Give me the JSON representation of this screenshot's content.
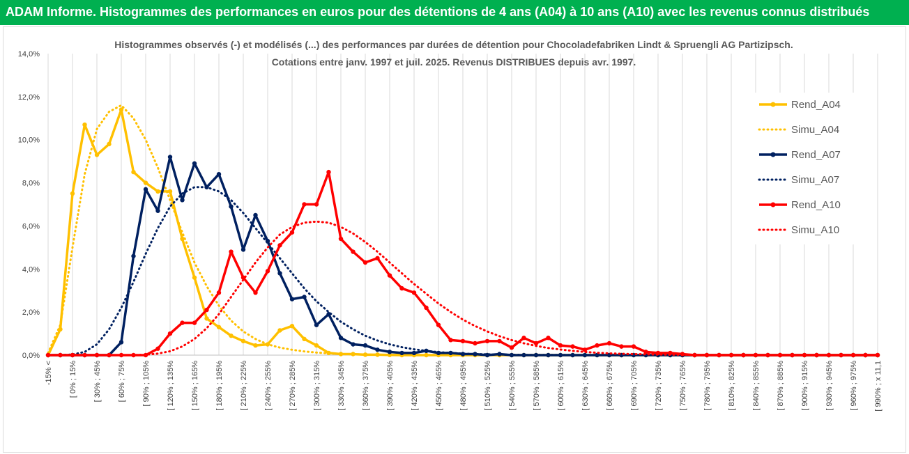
{
  "banner": {
    "title": "ADAM Informe. Histogrammes des performances en euros pour des détentions de 4 ans (A04) à 10 ans (A10) avec les revenus connus distribués"
  },
  "colors": {
    "banner_bg": "#00b050",
    "banner_text": "#ffffff",
    "A04": "#ffc000",
    "A07": "#002060",
    "A10": "#ff0000",
    "grid": "#d9d9d9"
  },
  "chart_data": {
    "type": "line",
    "title": "Histogrammes observés (-) et modélisés (...) des performances par durées de détention pour Chocoladefabriken Lindt & Spruengli AG Partizipsch.",
    "subtitle": "Cotations entre janv. 1997 et juil. 2025. Revenus DISTRIBUES depuis avr. 1997.",
    "xlabel": "",
    "ylabel": "",
    "ylim": [
      0,
      14
    ],
    "y_ticks": [
      "0,0%",
      "2,0%",
      "4,0%",
      "6,0%",
      "8,0%",
      "10,0%",
      "12,0%",
      "14,0%"
    ],
    "grid": "vertical",
    "legend_position": "right",
    "x_tick_labels": [
      "-15% <",
      "[ 0% ; 15%",
      "[ 30% ; 45%",
      "[ 60% ; 75%",
      "[ 90% ; 105%",
      "[ 120% ; 135%",
      "[ 150% ; 165%",
      "[ 180% ; 195%",
      "[ 210% ; 225%",
      "[ 240% ; 255%",
      "[ 270% ; 285%",
      "[ 300% ; 315%",
      "[ 330% ; 345%",
      "[ 360% ; 375%",
      "[ 390% ; 405%",
      "[ 420% ; 435%",
      "[ 450% ; 465%",
      "[ 480% ; 495%",
      "[ 510% ; 525%",
      "[ 540% ; 555%",
      "[ 570% ; 585%",
      "[ 600% ; 615%",
      "[ 630% ; 645%",
      "[ 660% ; 675%",
      "[ 690% ; 705%",
      "[ 720% ; 735%",
      "[ 750% ; 765%",
      "[ 780% ; 795%",
      "[ 810% ; 825%",
      "[ 840% ; 855%",
      "[ 870% ; 885%",
      "[ 900% ; 915%",
      "[ 930% ; 945%",
      "[ 960% ; 975%",
      "[ 990% ; x 11,1"
    ],
    "series": [
      {
        "name": "Rend_A04",
        "color": "#ffc000",
        "style": "solid",
        "markers": true,
        "values": [
          0,
          1.2,
          7.5,
          10.7,
          9.3,
          9.8,
          11.4,
          8.5,
          8.0,
          7.6,
          7.6,
          5.4,
          3.6,
          1.7,
          1.3,
          0.9,
          0.65,
          0.45,
          0.5,
          1.15,
          1.35,
          0.75,
          0.45,
          0.1,
          0.05,
          0.05,
          0.02,
          0.02,
          0.01,
          0,
          0,
          0,
          0,
          0,
          0,
          0,
          0,
          0,
          0,
          0,
          0,
          0,
          0,
          0,
          0,
          0,
          0,
          0,
          0,
          0,
          0,
          0,
          0,
          0,
          0,
          0,
          0,
          0,
          0,
          0,
          0,
          0,
          0,
          0,
          0,
          0,
          0,
          0,
          0
        ]
      },
      {
        "name": "Simu_A04",
        "color": "#ffc000",
        "style": "dotted",
        "markers": false,
        "values": [
          0.1,
          1.4,
          5.0,
          8.4,
          10.5,
          11.3,
          11.6,
          11.0,
          10.0,
          8.7,
          7.2,
          5.7,
          4.3,
          3.2,
          2.3,
          1.6,
          1.1,
          0.75,
          0.5,
          0.35,
          0.25,
          0.17,
          0.12,
          0.08,
          0.05,
          0.04,
          0.03,
          0.02,
          0.01,
          0.01,
          0.01,
          0.01,
          0,
          0,
          0,
          0,
          0,
          0,
          0,
          0,
          0,
          0,
          0,
          0,
          0,
          0,
          0,
          0,
          0,
          0,
          0,
          0,
          0,
          0,
          0,
          0,
          0,
          0,
          0,
          0,
          0,
          0,
          0,
          0,
          0,
          0,
          0,
          0,
          0
        ]
      },
      {
        "name": "Rend_A07",
        "color": "#002060",
        "style": "solid",
        "markers": true,
        "values": [
          0,
          0,
          0,
          0,
          0,
          0,
          0.6,
          4.6,
          7.7,
          6.7,
          9.2,
          7.2,
          8.9,
          7.8,
          8.4,
          6.9,
          4.9,
          6.5,
          5.3,
          3.8,
          2.6,
          2.7,
          1.4,
          1.9,
          0.8,
          0.5,
          0.45,
          0.25,
          0.15,
          0.1,
          0.1,
          0.2,
          0.1,
          0.1,
          0.05,
          0.05,
          0,
          0.05,
          0,
          0,
          0,
          0,
          0,
          0,
          0,
          0,
          0,
          0,
          0,
          0,
          0,
          0,
          0,
          0,
          0,
          0,
          0,
          0,
          0,
          0,
          0,
          0,
          0,
          0,
          0,
          0,
          0,
          0,
          0
        ]
      },
      {
        "name": "Simu_A07",
        "color": "#002060",
        "style": "dotted",
        "markers": false,
        "values": [
          0,
          0,
          0.03,
          0.15,
          0.5,
          1.2,
          2.2,
          3.4,
          4.7,
          5.9,
          6.9,
          7.5,
          7.8,
          7.8,
          7.6,
          7.2,
          6.6,
          5.9,
          5.2,
          4.5,
          3.8,
          3.1,
          2.5,
          2.0,
          1.55,
          1.2,
          0.9,
          0.68,
          0.5,
          0.37,
          0.27,
          0.2,
          0.14,
          0.1,
          0.07,
          0.05,
          0.04,
          0.03,
          0.02,
          0.01,
          0.01,
          0.01,
          0.01,
          0,
          0,
          0,
          0,
          0,
          0,
          0,
          0,
          0,
          0,
          0,
          0,
          0,
          0,
          0,
          0,
          0,
          0,
          0,
          0,
          0,
          0,
          0,
          0,
          0,
          0
        ]
      },
      {
        "name": "Rend_A10",
        "color": "#ff0000",
        "style": "solid",
        "markers": true,
        "values": [
          0,
          0,
          0,
          0,
          0,
          0,
          0,
          0,
          0,
          0.3,
          1.0,
          1.5,
          1.5,
          2.1,
          2.9,
          4.8,
          3.6,
          2.9,
          3.9,
          5.1,
          5.7,
          7.0,
          7.0,
          8.5,
          5.4,
          4.8,
          4.3,
          4.5,
          3.7,
          3.1,
          2.9,
          2.2,
          1.4,
          0.7,
          0.65,
          0.55,
          0.65,
          0.65,
          0.35,
          0.8,
          0.55,
          0.8,
          0.45,
          0.4,
          0.25,
          0.45,
          0.55,
          0.4,
          0.4,
          0.15,
          0.1,
          0.1,
          0.05,
          0,
          0,
          0,
          0,
          0,
          0,
          0,
          0,
          0,
          0,
          0,
          0,
          0,
          0,
          0,
          0
        ]
      },
      {
        "name": "Simu_A10",
        "color": "#ff0000",
        "style": "dotted",
        "markers": false,
        "values": [
          0,
          0,
          0,
          0,
          0,
          0,
          0,
          0,
          0.02,
          0.07,
          0.18,
          0.4,
          0.75,
          1.25,
          1.9,
          2.7,
          3.5,
          4.3,
          5.0,
          5.6,
          5.95,
          6.15,
          6.2,
          6.15,
          5.95,
          5.65,
          5.25,
          4.8,
          4.3,
          3.8,
          3.3,
          2.85,
          2.4,
          2.0,
          1.65,
          1.35,
          1.1,
          0.88,
          0.7,
          0.55,
          0.43,
          0.33,
          0.26,
          0.2,
          0.15,
          0.11,
          0.08,
          0.06,
          0.05,
          0.04,
          0.03,
          0.02,
          0.02,
          0.01,
          0.01,
          0.01,
          0,
          0,
          0,
          0,
          0,
          0,
          0,
          0,
          0,
          0,
          0,
          0,
          0
        ]
      }
    ]
  }
}
